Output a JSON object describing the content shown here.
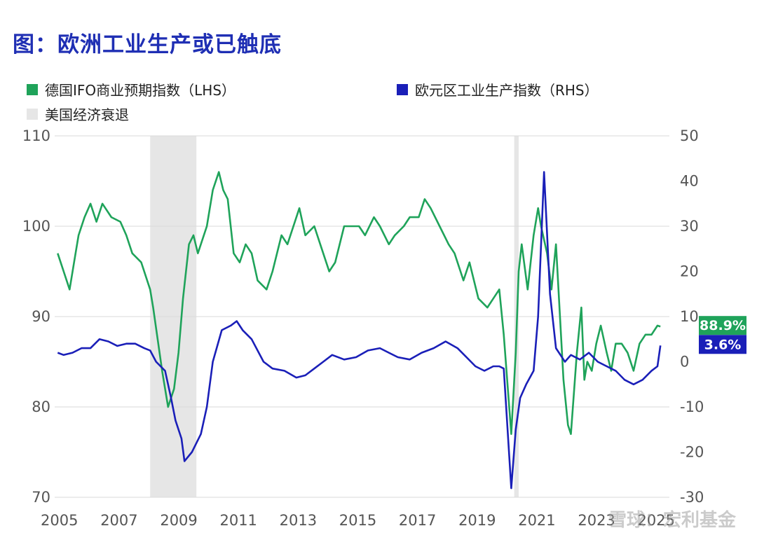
{
  "title": "图：欧洲工业生产或已触底",
  "watermark": "雪球：宏利基金",
  "legend": [
    {
      "label": "德国IFO商业预期指数（LHS）",
      "color": "#1fa35a",
      "type": "series"
    },
    {
      "label": "欧元区工业生产指数（RHS）",
      "color": "#1a1fb8",
      "type": "series"
    },
    {
      "label": "美国经济衰退",
      "color": "#e6e6e6",
      "type": "shade"
    }
  ],
  "chart_data": {
    "type": "line",
    "x_ticks": [
      "2005",
      "2007",
      "2009",
      "2011",
      "2013",
      "2015",
      "2017",
      "2019",
      "2021",
      "2023",
      "2025"
    ],
    "left_axis": {
      "ticks": [
        "110",
        "100",
        "90",
        "80",
        "70"
      ],
      "ylim": [
        70,
        110
      ]
    },
    "right_axis": {
      "ticks": [
        "50",
        "40",
        "30",
        "20",
        "10",
        "0",
        "-10",
        "-20",
        "-30"
      ],
      "ylim": [
        -30,
        50
      ]
    },
    "grid": true,
    "recessions": [
      [
        2007.9,
        2009.45
      ],
      [
        2020.1,
        2020.25
      ]
    ],
    "series": [
      {
        "name": "德国IFO商业预期指数（LHS）",
        "axis": "left",
        "color": "#1fa35a",
        "end_label": "88.9%",
        "x": [
          2004.8,
          2005.0,
          2005.2,
          2005.4,
          2005.5,
          2005.7,
          2005.9,
          2006.1,
          2006.3,
          2006.6,
          2006.9,
          2007.1,
          2007.3,
          2007.6,
          2007.9,
          2008.0,
          2008.3,
          2008.5,
          2008.7,
          2008.85,
          2009.0,
          2009.2,
          2009.35,
          2009.5,
          2009.8,
          2010.0,
          2010.2,
          2010.35,
          2010.5,
          2010.7,
          2010.9,
          2011.1,
          2011.3,
          2011.5,
          2011.8,
          2012.0,
          2012.3,
          2012.5,
          2012.7,
          2012.9,
          2013.1,
          2013.4,
          2013.6,
          2013.9,
          2014.1,
          2014.4,
          2014.6,
          2014.9,
          2015.1,
          2015.4,
          2015.6,
          2015.9,
          2016.1,
          2016.4,
          2016.6,
          2016.9,
          2017.1,
          2017.3,
          2017.6,
          2017.9,
          2018.1,
          2018.4,
          2018.6,
          2018.9,
          2019.2,
          2019.4,
          2019.6,
          2019.75,
          2020.0,
          2020.15,
          2020.25,
          2020.35,
          2020.55,
          2020.75,
          2020.9,
          2021.0,
          2021.2,
          2021.35,
          2021.5,
          2021.75,
          2021.9,
          2022.0,
          2022.2,
          2022.35,
          2022.45,
          2022.55,
          2022.7,
          2022.85,
          2023.0,
          2023.2,
          2023.35,
          2023.5,
          2023.7,
          2023.9,
          2024.1,
          2024.3,
          2024.5,
          2024.7,
          2024.9,
          2025.0
        ],
        "y": [
          97,
          95,
          93,
          97,
          99,
          101,
          102.5,
          100.5,
          102.5,
          101,
          100.5,
          99,
          97,
          96,
          93,
          91,
          84,
          80,
          82,
          86,
          92,
          98,
          99,
          97,
          100,
          104,
          106,
          104,
          103,
          97,
          96,
          98,
          97,
          94,
          93,
          95,
          99,
          98,
          100,
          102,
          99,
          100,
          98,
          95,
          96,
          100,
          100,
          100,
          99,
          101,
          100,
          98,
          99,
          100,
          101,
          101,
          103,
          102,
          100,
          98,
          97,
          94,
          96,
          92,
          91,
          92,
          93,
          88,
          77,
          86,
          95,
          98,
          93,
          99,
          102,
          100,
          97,
          93,
          98,
          83,
          78,
          77,
          86,
          91,
          83,
          85,
          84,
          87,
          89,
          86,
          84,
          87,
          87,
          86,
          84,
          87,
          88,
          88,
          89,
          88.9
        ]
      },
      {
        "name": "欧元区工业生产指数（RHS）",
        "axis": "right",
        "color": "#1a1fb8",
        "end_label": "3.6%",
        "x": [
          2004.8,
          2005.0,
          2005.3,
          2005.6,
          2005.9,
          2006.2,
          2006.5,
          2006.8,
          2007.1,
          2007.4,
          2007.7,
          2007.9,
          2008.1,
          2008.4,
          2008.6,
          2008.75,
          2008.95,
          2009.05,
          2009.3,
          2009.6,
          2009.8,
          2010.0,
          2010.3,
          2010.6,
          2010.8,
          2011.0,
          2011.3,
          2011.7,
          2012.0,
          2012.4,
          2012.8,
          2013.1,
          2013.4,
          2013.7,
          2014.0,
          2014.4,
          2014.8,
          2015.2,
          2015.6,
          2015.9,
          2016.2,
          2016.6,
          2017.0,
          2017.4,
          2017.8,
          2018.2,
          2018.5,
          2018.8,
          2019.1,
          2019.4,
          2019.6,
          2019.75,
          2020.0,
          2020.15,
          2020.3,
          2020.5,
          2020.75,
          2020.9,
          2021.1,
          2021.3,
          2021.5,
          2021.8,
          2022.0,
          2022.3,
          2022.6,
          2022.9,
          2023.2,
          2023.5,
          2023.8,
          2024.1,
          2024.4,
          2024.7,
          2024.9,
          2025.0
        ],
        "y": [
          2,
          1.5,
          2,
          3,
          3,
          5,
          4.5,
          3.5,
          4,
          4,
          3,
          2.5,
          0,
          -2,
          -8,
          -13,
          -17,
          -22,
          -20,
          -16,
          -10,
          0,
          7,
          8,
          9,
          7,
          5,
          0,
          -1.5,
          -2,
          -3.5,
          -3,
          -1.5,
          0,
          1.5,
          0.5,
          1,
          2.5,
          3,
          2,
          1,
          0.5,
          2,
          3,
          4.5,
          3,
          1,
          -1,
          -2,
          -1,
          -1,
          -1.5,
          -28,
          -15,
          -8,
          -5,
          -2,
          10,
          42,
          15,
          3,
          0,
          1.5,
          0.5,
          2,
          0,
          -1,
          -2,
          -4,
          -5,
          -4,
          -2,
          -1,
          3.6
        ]
      }
    ]
  }
}
